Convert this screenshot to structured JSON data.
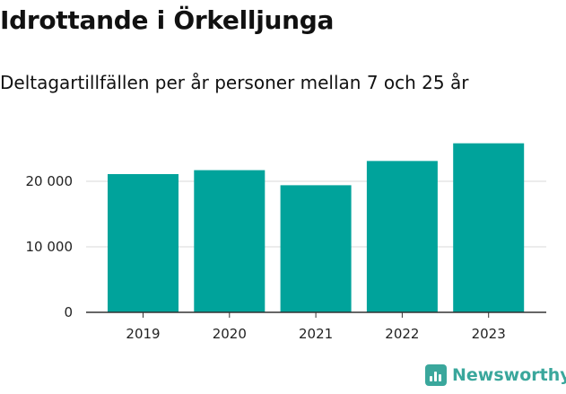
{
  "title": "Idrottande i Örkelljunga",
  "subtitle": "Deltagartillfällen per år personer mellan 7 och 25 år",
  "brand": "Newsworthy",
  "colors": {
    "bar": "#00a39b",
    "grid": "#d9d9d9",
    "axis": "#333333",
    "brand": "#3aa79c"
  },
  "chart_data": {
    "type": "bar",
    "categories": [
      "2019",
      "2020",
      "2021",
      "2022",
      "2023"
    ],
    "values": [
      21100,
      21700,
      19400,
      23100,
      25800
    ],
    "ylim": [
      0,
      30000
    ],
    "yticks": [
      0,
      10000,
      20000
    ],
    "ytick_labels": [
      "0",
      "10 000",
      "20 000"
    ],
    "grid": true,
    "xlabel": "",
    "ylabel": ""
  }
}
